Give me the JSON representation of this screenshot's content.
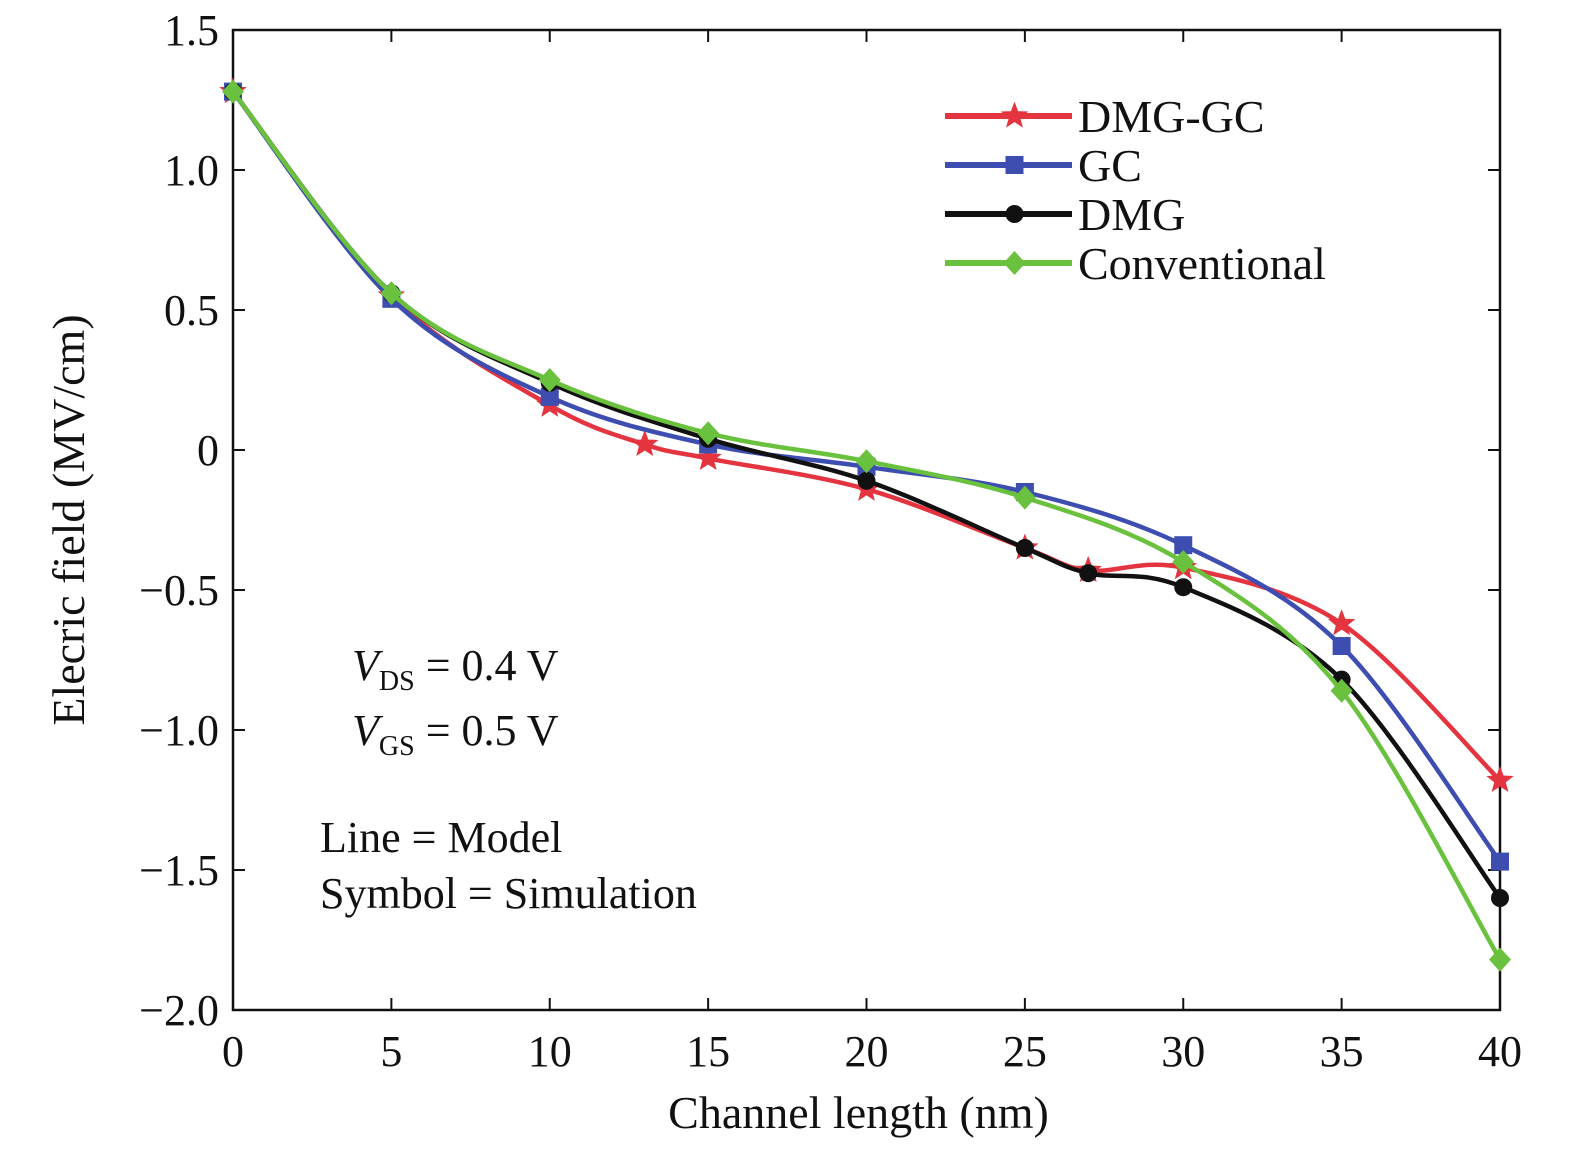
{
  "chart_data": {
    "type": "line",
    "xlabel": "Channel length (nm)",
    "ylabel": "Elecric field (MV/cm)",
    "xlim": [
      0,
      40
    ],
    "ylim": [
      -2.0,
      1.5
    ],
    "x_ticks": [
      0,
      5,
      10,
      15,
      20,
      25,
      30,
      35,
      40
    ],
    "x_tick_labels": [
      "0",
      "5",
      "10",
      "15",
      "20",
      "25",
      "30",
      "35",
      "40"
    ],
    "y_ticks": [
      1.5,
      1.0,
      0.5,
      0,
      -0.5,
      -1.0,
      -1.5,
      -2.0
    ],
    "y_tick_labels": [
      "1.5",
      "1.0",
      "0.5",
      "0",
      "−0.5",
      "−1.0",
      "−1.5",
      "−2.0"
    ],
    "grid": false,
    "legend_position": "top-right",
    "annotations": {
      "vds_symbol": "V",
      "vds_subscript": "DS",
      "vds_value": " = 0.4 V",
      "vgs_symbol": "V",
      "vgs_subscript": "GS",
      "vgs_value": " = 0.5 V",
      "line_note": "Line = Model",
      "symbol_note": "Symbol = Simulation"
    },
    "series": [
      {
        "name": "DMG-GC",
        "color": "#e3343f",
        "marker": "star",
        "x": [
          0,
          5,
          10,
          13,
          15,
          20,
          25,
          27,
          30,
          35,
          40
        ],
        "y": [
          1.28,
          0.55,
          0.16,
          0.02,
          -0.03,
          -0.14,
          -0.35,
          -0.43,
          -0.42,
          -0.62,
          -1.18
        ]
      },
      {
        "name": "GC",
        "color": "#3d4db0",
        "marker": "square",
        "x": [
          0,
          5,
          10,
          15,
          20,
          25,
          30,
          35,
          40
        ],
        "y": [
          1.28,
          0.54,
          0.19,
          0.02,
          -0.06,
          -0.15,
          -0.34,
          -0.7,
          -1.47
        ]
      },
      {
        "name": "DMG",
        "color": "#111111",
        "marker": "circle",
        "x": [
          0,
          5,
          10,
          15,
          20,
          25,
          27,
          30,
          35,
          40
        ],
        "y": [
          1.28,
          0.56,
          0.24,
          0.04,
          -0.11,
          -0.35,
          -0.44,
          -0.49,
          -0.82,
          -1.6
        ]
      },
      {
        "name": "Conventional",
        "color": "#69c13d",
        "marker": "diamond",
        "x": [
          0,
          5,
          10,
          15,
          20,
          25,
          30,
          35,
          40
        ],
        "y": [
          1.28,
          0.56,
          0.25,
          0.06,
          -0.04,
          -0.17,
          -0.4,
          -0.86,
          -1.82
        ]
      }
    ]
  }
}
